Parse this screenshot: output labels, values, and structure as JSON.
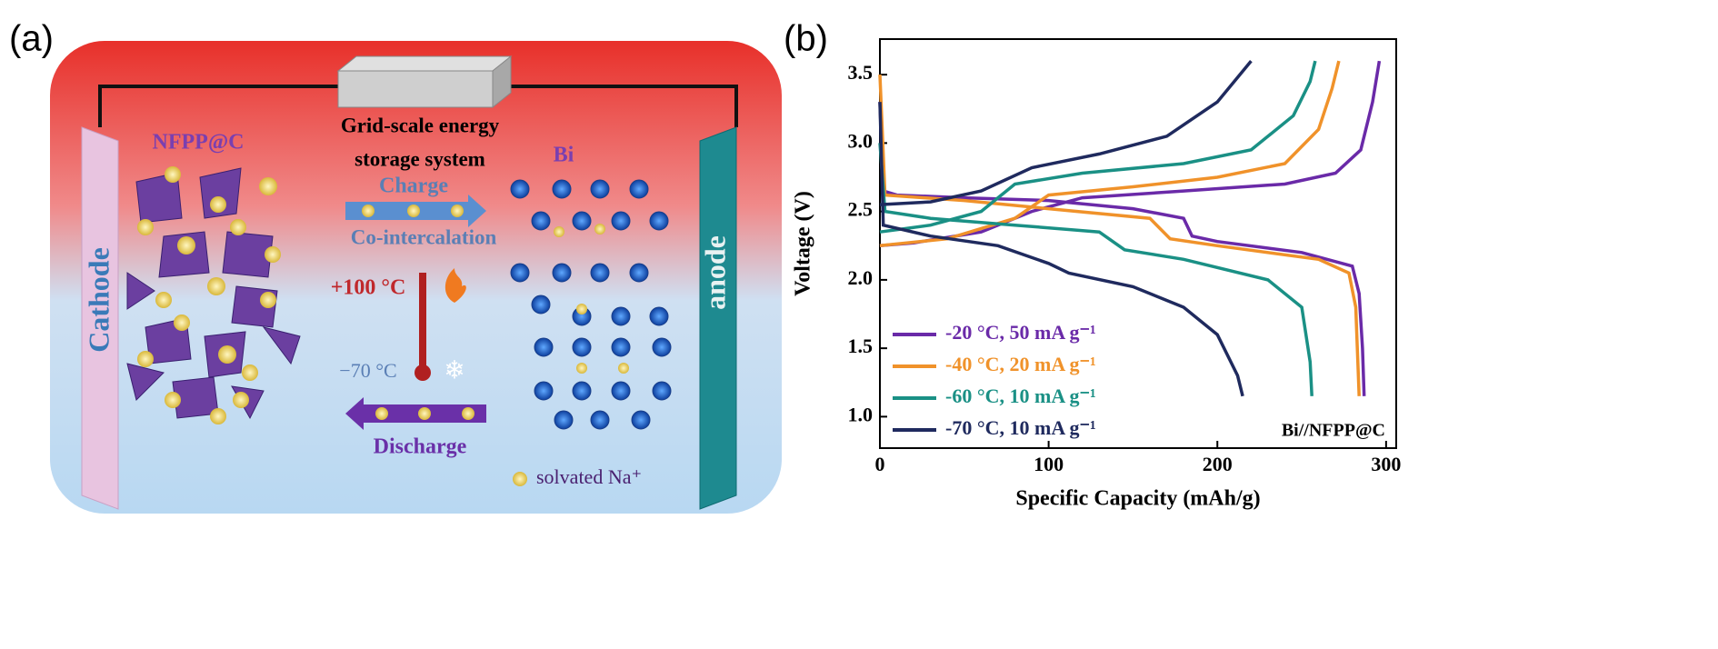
{
  "panels": {
    "a_label": "(a)",
    "b_label": "(b)"
  },
  "panel_a": {
    "system_line1": "Grid-scale energy",
    "system_line2": "storage system",
    "cathode_material": "NFPP@C",
    "anode_material": "Bi",
    "charge": "Charge",
    "co_intercalation": "Co-intercalation",
    "hot": "+100 °C",
    "cold": "−70 °C",
    "discharge": "Discharge",
    "legend": "solvated Na⁺",
    "cathode": "Cathode",
    "anode": "anode"
  },
  "chart_data": {
    "type": "line",
    "xlabel": "Specific Capacity (mAh/g)",
    "ylabel": "Voltage (V)",
    "annotation": "Bi//NFPP@C",
    "xlim": [
      0,
      306
    ],
    "ylim": [
      0.77,
      3.76
    ],
    "xticks": [
      0,
      100,
      200,
      300
    ],
    "yticks": [
      {
        "value": 1,
        "label": "1.0"
      },
      1.5,
      {
        "value": 2,
        "label": "2.0"
      },
      2.5,
      {
        "value": 3,
        "label": "3.0"
      },
      3.5
    ],
    "legend": "lower left",
    "series": [
      {
        "name": "-20 °C, 50 mA g⁻¹",
        "color": "#6a2aa8",
        "x": [
          0,
          2,
          10,
          50,
          100,
          150,
          180,
          185,
          200,
          250,
          280,
          284,
          286,
          287,
          null,
          0,
          20,
          60,
          90,
          120,
          180,
          240,
          270,
          285,
          292,
          296
        ],
        "values": [
          3.3,
          2.65,
          2.62,
          2.6,
          2.58,
          2.52,
          2.45,
          2.32,
          2.28,
          2.2,
          2.1,
          1.9,
          1.5,
          1.15,
          null,
          2.25,
          2.27,
          2.35,
          2.5,
          2.6,
          2.65,
          2.7,
          2.78,
          2.95,
          3.3,
          3.6
        ]
      },
      {
        "name": "-40 °C, 20 mA g⁻¹",
        "color": "#f0922a",
        "x": [
          0,
          3,
          50,
          100,
          160,
          172,
          200,
          260,
          278,
          282,
          284,
          null,
          0,
          40,
          80,
          100,
          150,
          200,
          240,
          260,
          268,
          272
        ],
        "values": [
          3.5,
          2.62,
          2.58,
          2.52,
          2.45,
          2.3,
          2.25,
          2.15,
          2.05,
          1.8,
          1.15,
          null,
          2.25,
          2.3,
          2.45,
          2.62,
          2.68,
          2.75,
          2.85,
          3.1,
          3.4,
          3.6
        ]
      },
      {
        "name": "-60 °C, 10 mA g⁻¹",
        "color": "#1a9085",
        "x": [
          0,
          3,
          30,
          80,
          130,
          145,
          180,
          230,
          250,
          255,
          256,
          null,
          0,
          30,
          60,
          80,
          120,
          180,
          220,
          245,
          255,
          258
        ],
        "values": [
          3.0,
          2.5,
          2.45,
          2.4,
          2.35,
          2.22,
          2.15,
          2.0,
          1.8,
          1.4,
          1.15,
          null,
          2.35,
          2.4,
          2.5,
          2.7,
          2.78,
          2.85,
          2.95,
          3.2,
          3.45,
          3.6
        ]
      },
      {
        "name": "-70 °C, 10 mA g⁻¹",
        "color": "#1f2a5e",
        "x": [
          0,
          2,
          30,
          70,
          100,
          112,
          150,
          180,
          200,
          212,
          215,
          null,
          0,
          30,
          60,
          90,
          130,
          170,
          200,
          220
        ],
        "values": [
          3.3,
          2.4,
          2.32,
          2.25,
          2.12,
          2.05,
          1.95,
          1.8,
          1.6,
          1.3,
          1.15,
          null,
          2.55,
          2.57,
          2.65,
          2.82,
          2.92,
          3.05,
          3.3,
          3.6
        ]
      }
    ]
  }
}
